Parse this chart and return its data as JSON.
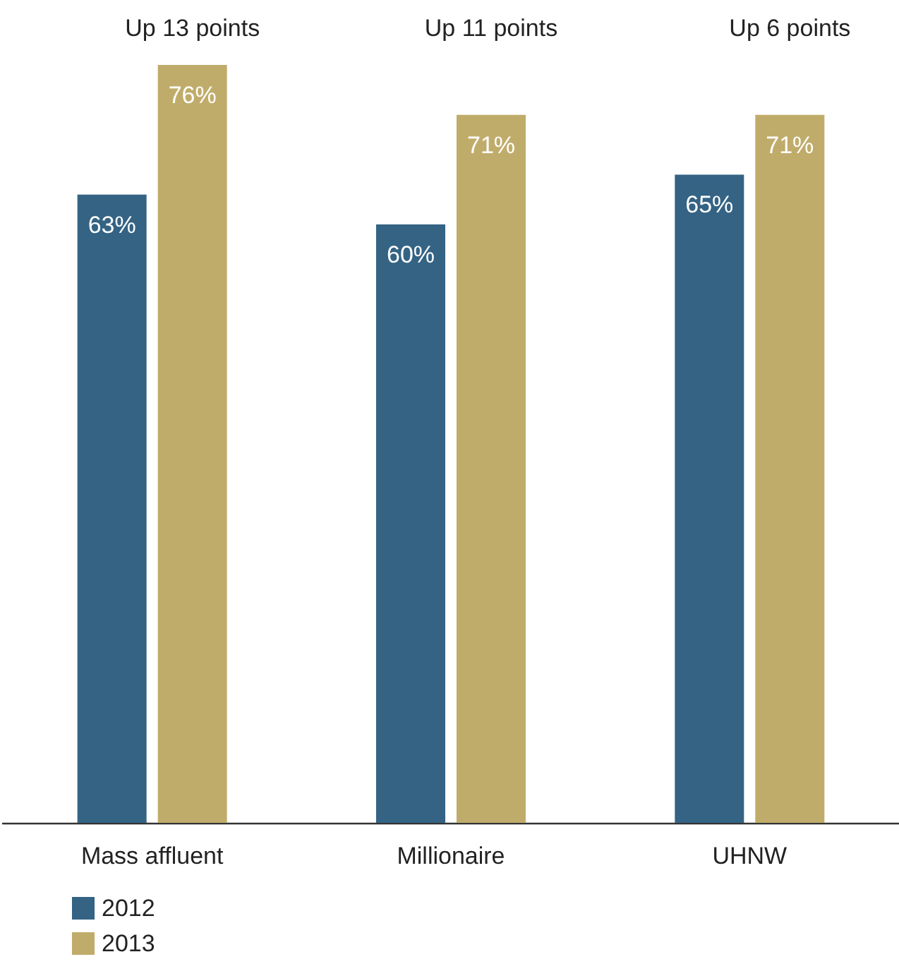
{
  "chart_data": {
    "type": "bar",
    "categories": [
      "Mass affluent",
      "Millionaire",
      "UHNW"
    ],
    "series": [
      {
        "name": "2012",
        "color": "#346384",
        "values": [
          63,
          60,
          65
        ],
        "value_labels": [
          "63%",
          "60%",
          "65%"
        ]
      },
      {
        "name": "2013",
        "color": "#c0ac6a",
        "values": [
          76,
          71,
          71
        ],
        "value_labels": [
          "76%",
          "71%",
          "71%"
        ]
      }
    ],
    "annotations": [
      "Up 13 points",
      "Up 11 points",
      "Up 6 points"
    ],
    "legend": "bottom left"
  }
}
